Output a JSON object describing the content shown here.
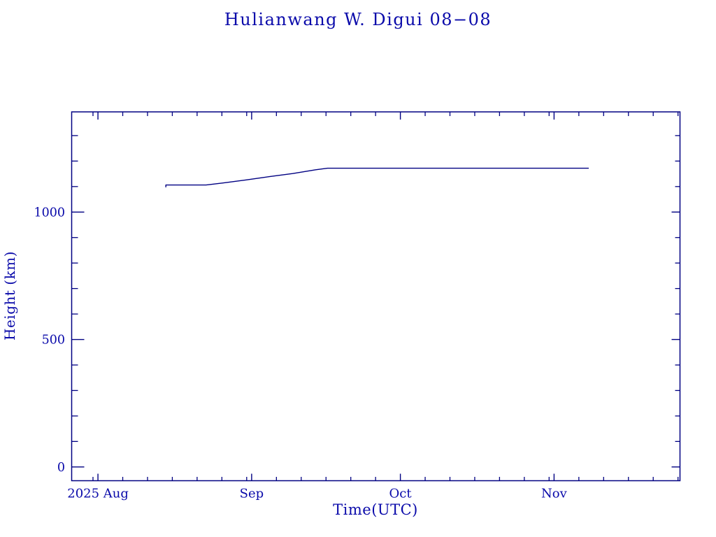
{
  "colors": {
    "background": "#ffffff",
    "text": "#0a0aaa",
    "axis": "#000082",
    "line": "#000082"
  },
  "chart_data": {
    "type": "line",
    "title": "Hulianwang W. Digui 08−08",
    "xlabel": "Time(UTC)",
    "ylabel": "Height (km)",
    "x_epoch": "2025-08-01",
    "xlim_days": [
      -5.3,
      117.4
    ],
    "ylim": [
      -54,
      1393
    ],
    "grid": false,
    "legend": false,
    "x_major_ticks": [
      {
        "label": "2025 Aug",
        "day": 0
      },
      {
        "label": "Sep",
        "day": 31
      },
      {
        "label": "Oct",
        "day": 61
      },
      {
        "label": "Nov",
        "day": 92
      }
    ],
    "x_minor_tick_days": [
      -1,
      5,
      10,
      15,
      20,
      25,
      30,
      36,
      41,
      46,
      51,
      56,
      66,
      71,
      76,
      81,
      86,
      91,
      97,
      102,
      107,
      112,
      117
    ],
    "y_major_ticks": [
      {
        "label": "0",
        "value": 0
      },
      {
        "label": "500",
        "value": 500
      },
      {
        "label": "1000",
        "value": 1000
      }
    ],
    "y_minor_tick_values": [
      100,
      200,
      300,
      400,
      600,
      700,
      800,
      900,
      1100,
      1200,
      1300
    ],
    "series": [
      {
        "name": "orbit-height",
        "points": [
          {
            "date": "2025-08-14",
            "day": 13.7,
            "height_km": 1097
          },
          {
            "date": "2025-08-14",
            "day": 13.7,
            "height_km": 1106
          },
          {
            "date": "2025-08-22",
            "day": 21.8,
            "height_km": 1106
          },
          {
            "date": "2025-08-26",
            "day": 25.2,
            "height_km": 1114
          },
          {
            "date": "2025-08-31",
            "day": 29.9,
            "height_km": 1126
          },
          {
            "date": "2025-09-05",
            "day": 34.6,
            "height_km": 1139
          },
          {
            "date": "2025-09-09",
            "day": 39.3,
            "height_km": 1151
          },
          {
            "date": "2025-09-14",
            "day": 43.9,
            "height_km": 1166
          },
          {
            "date": "2025-09-16",
            "day": 46.3,
            "height_km": 1172
          },
          {
            "date": "2025-11-08",
            "day": 99.0,
            "height_km": 1172
          }
        ]
      }
    ]
  }
}
